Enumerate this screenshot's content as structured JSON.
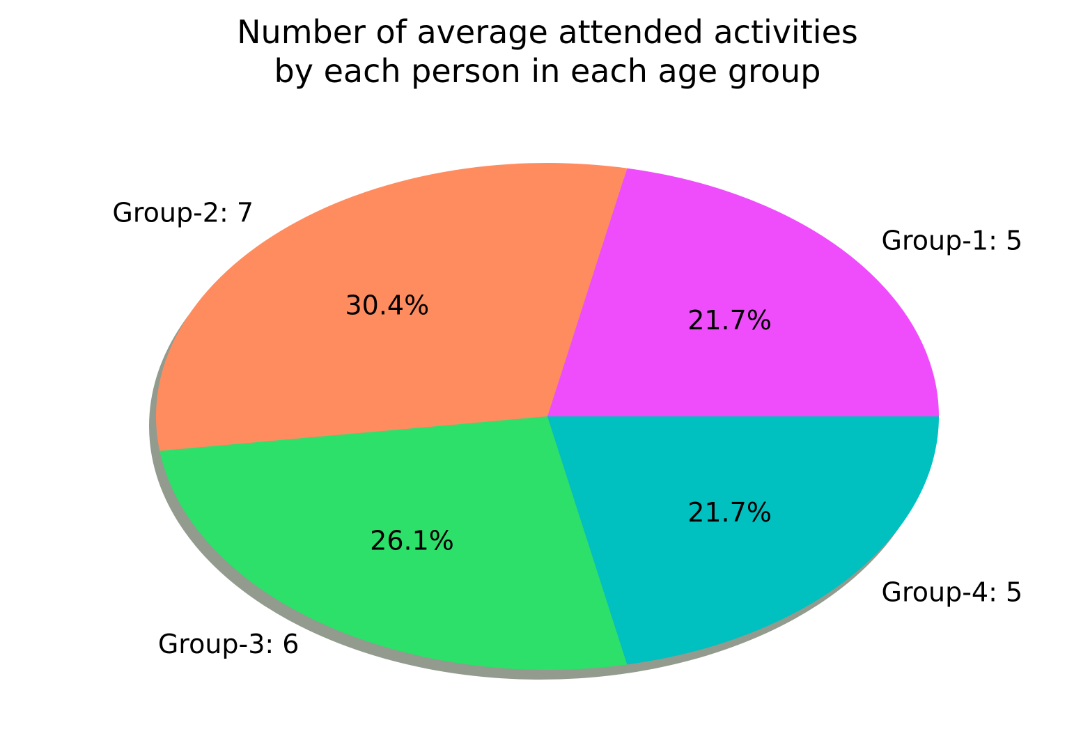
{
  "chart_data": {
    "type": "pie",
    "title": "Number of average attended activities\nby each person in each age group",
    "title_lines": [
      "Number of average attended activities",
      "by each person in each age group"
    ],
    "categories": [
      "Group-1",
      "Group-2",
      "Group-3",
      "Group-4"
    ],
    "values": [
      5,
      7,
      6,
      5
    ],
    "labels": [
      "Group-1: 5",
      "Group-2: 7",
      "Group-3: 6",
      "Group-4: 5"
    ],
    "percentages": [
      "21.7%",
      "30.4%",
      "26.1%",
      "21.7%"
    ],
    "colors": [
      "#ef4dfb",
      "#ff8c5f",
      "#2ce06a",
      "#00c0c0"
    ],
    "shadow": true,
    "start_angle_deg": 0,
    "direction": "counterclockwise"
  }
}
